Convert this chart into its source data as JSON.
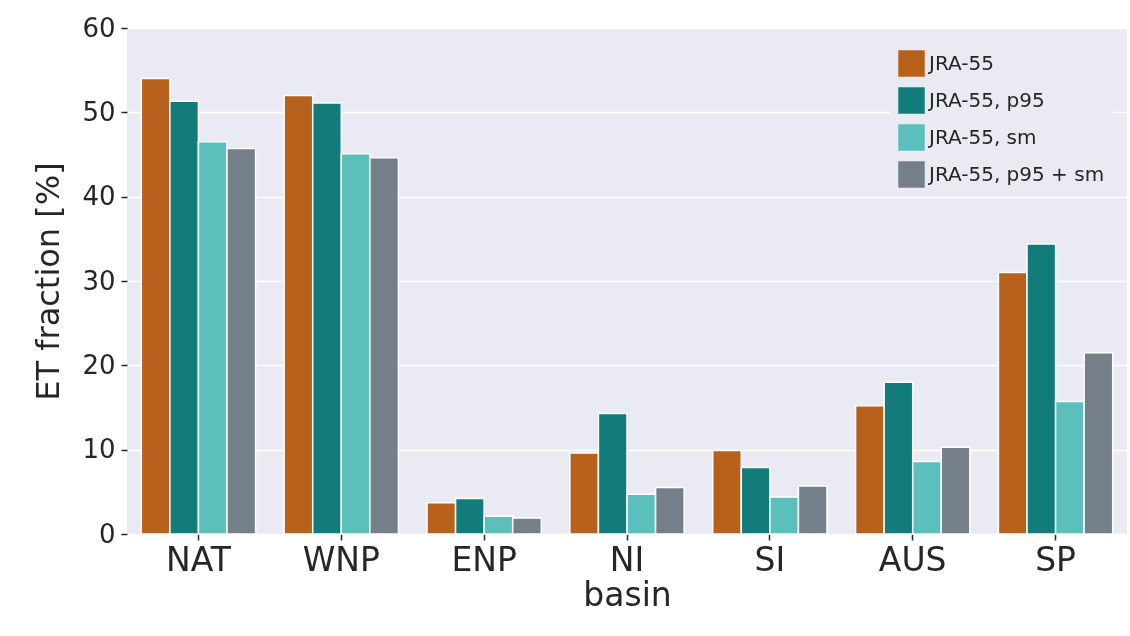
{
  "chart_data": {
    "type": "bar",
    "xlabel": "basin",
    "ylabel": "ET fraction [%]",
    "categories": [
      "NAT",
      "WNP",
      "ENP",
      "NI",
      "SI",
      "AUS",
      "SP"
    ],
    "series": [
      {
        "name": "JRA-55",
        "color": "#b8611d",
        "values": [
          54.0,
          52.0,
          3.7,
          9.6,
          9.9,
          15.2,
          31.0
        ]
      },
      {
        "name": "JRA-55, p95",
        "color": "#127c7a",
        "values": [
          51.3,
          51.1,
          4.2,
          14.3,
          7.9,
          18.0,
          34.4
        ]
      },
      {
        "name": "JRA-55, sm",
        "color": "#5bc0bb",
        "values": [
          46.5,
          45.1,
          2.1,
          4.7,
          4.4,
          8.6,
          15.7
        ]
      },
      {
        "name": "JRA-55, p95 + sm",
        "color": "#757f8a",
        "values": [
          45.7,
          44.6,
          1.9,
          5.5,
          5.7,
          10.3,
          21.5
        ]
      }
    ],
    "ylim": [
      0,
      60
    ],
    "yticks": [
      0,
      10,
      20,
      30,
      40,
      50,
      60
    ],
    "grid": "y",
    "legend": "top right"
  }
}
